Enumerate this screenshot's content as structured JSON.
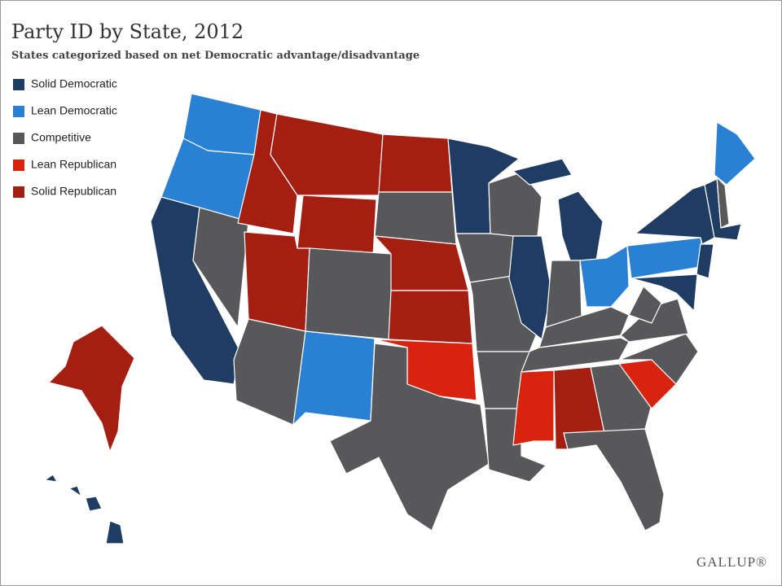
{
  "header": {
    "title": "Party ID by State, 2012",
    "subtitle": "States categorized based on net Democratic advantage/disadvantage"
  },
  "legend": [
    {
      "label": "Solid Democratic",
      "color": "#1f3d63"
    },
    {
      "label": "Lean Democratic",
      "color": "#2a80d2"
    },
    {
      "label": "Competitive",
      "color": "#58585b"
    },
    {
      "label": "Lean Republican",
      "color": "#d8230f"
    },
    {
      "label": "Solid Republican",
      "color": "#a41e12"
    }
  ],
  "footer": {
    "logo": "GALLUP®"
  }
}
